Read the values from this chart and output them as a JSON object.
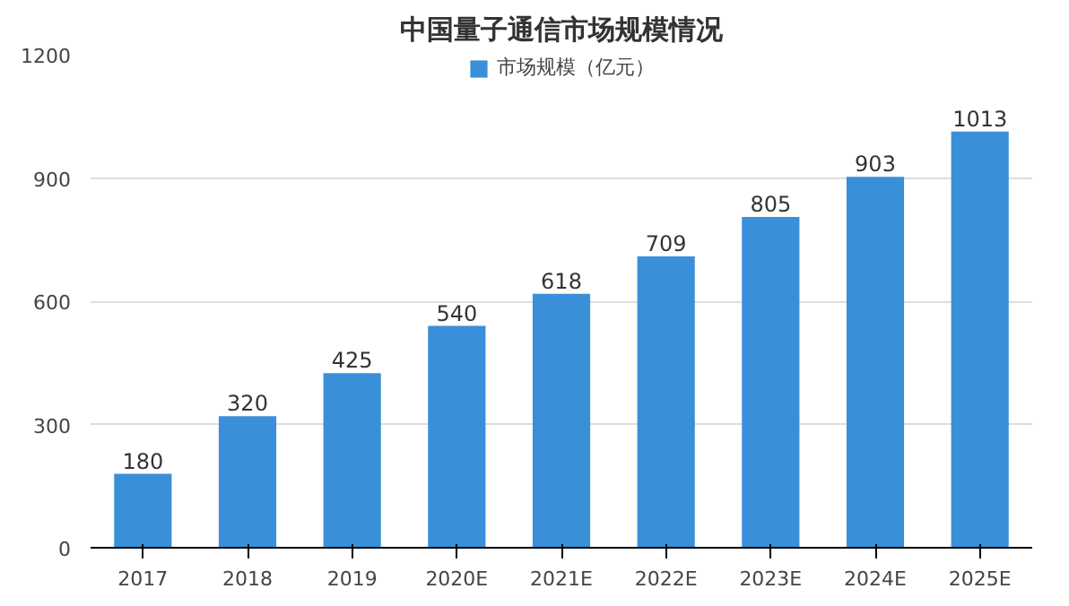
{
  "chart_data": {
    "type": "bar",
    "title": "中国量子通信市场规模情况",
    "categories": [
      "2017",
      "2018",
      "2019",
      "2020E",
      "2021E",
      "2022E",
      "2023E",
      "2024E",
      "2025E"
    ],
    "series": [
      {
        "name": "市场规模（亿元）",
        "color": "#3a8fd9",
        "values": [
          180,
          320,
          425,
          540,
          618,
          709,
          805,
          903,
          1013
        ]
      }
    ],
    "ylim": [
      0,
      1200
    ],
    "yticks": [
      0,
      300,
      600,
      900,
      1200
    ],
    "grid": "y",
    "legend": "top",
    "data_labels": true
  }
}
